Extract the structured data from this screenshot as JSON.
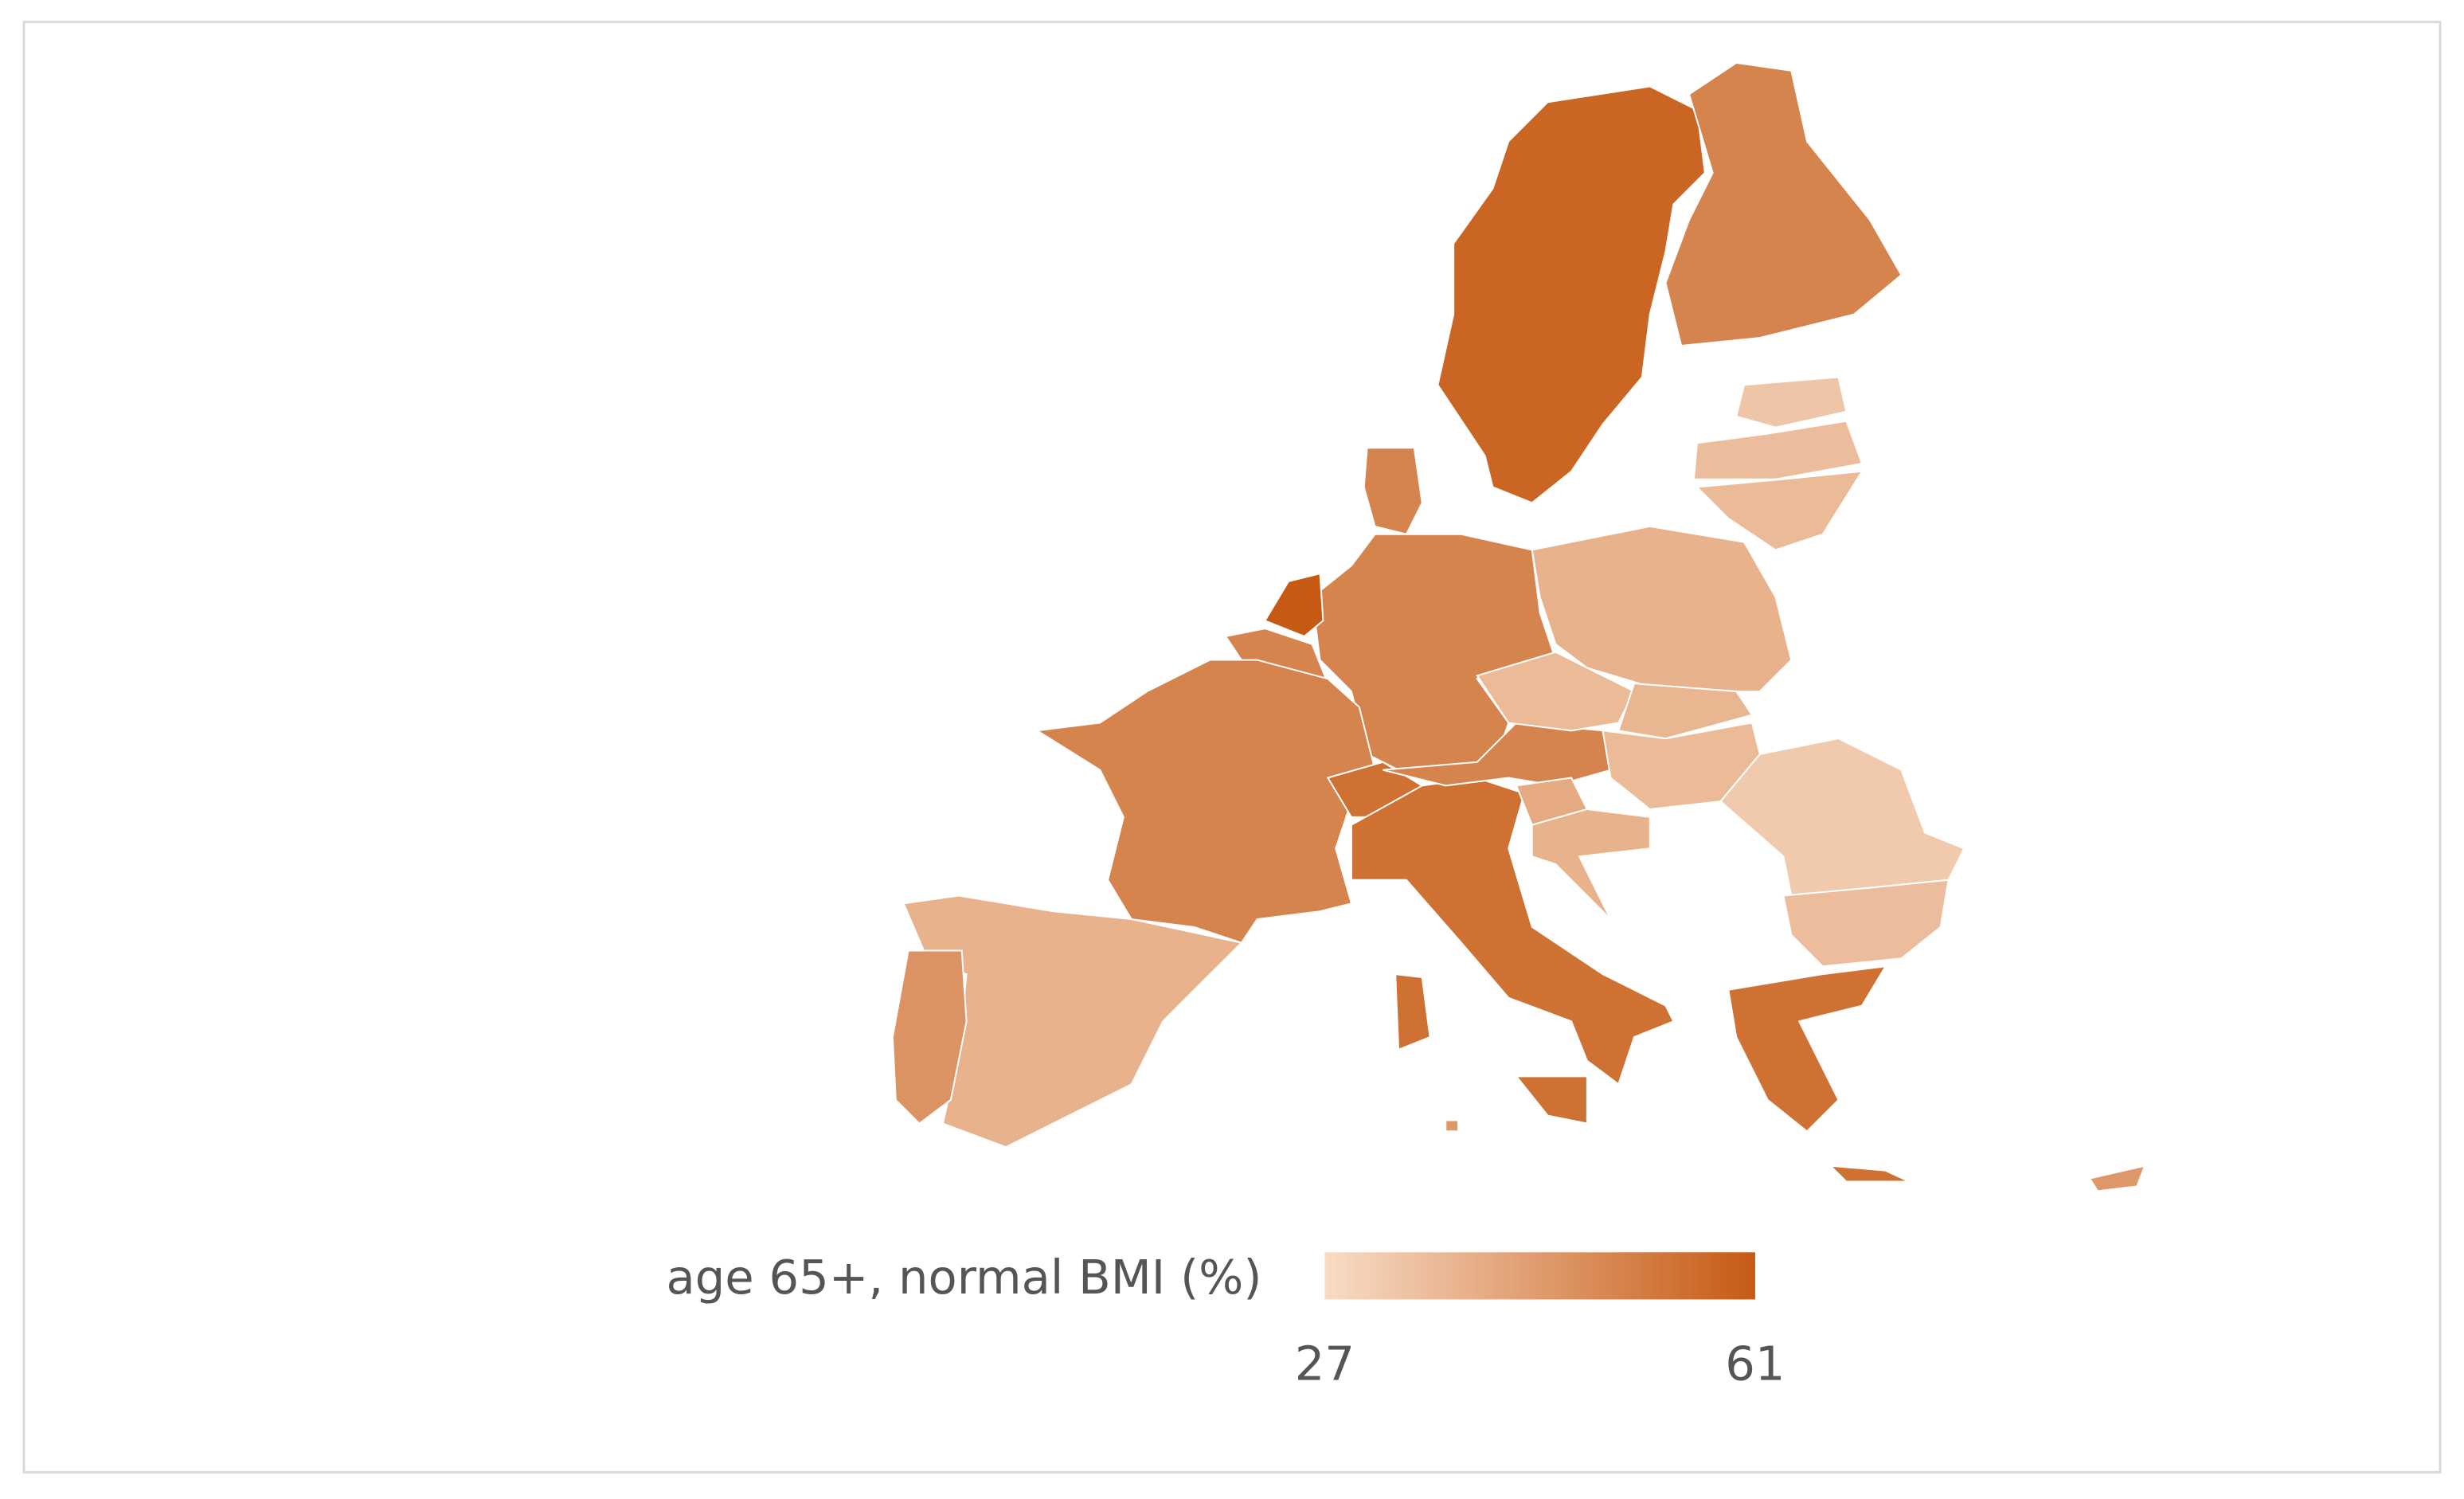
{
  "chart_data": {
    "type": "choropleth",
    "colorbar_title": "age 65+, normal BMI (%)",
    "clim": [
      27,
      61
    ],
    "cticks": [
      27,
      61
    ],
    "colors": [
      "#f8dcc6",
      "#c65a14"
    ],
    "values": [
      58,
      50,
      33,
      35,
      36,
      38,
      50,
      50,
      61,
      50,
      50,
      38,
      46,
      55,
      55,
      55,
      55,
      50,
      36,
      37,
      36,
      40,
      38,
      32,
      35,
      55,
      55,
      45,
      45
    ]
  }
}
